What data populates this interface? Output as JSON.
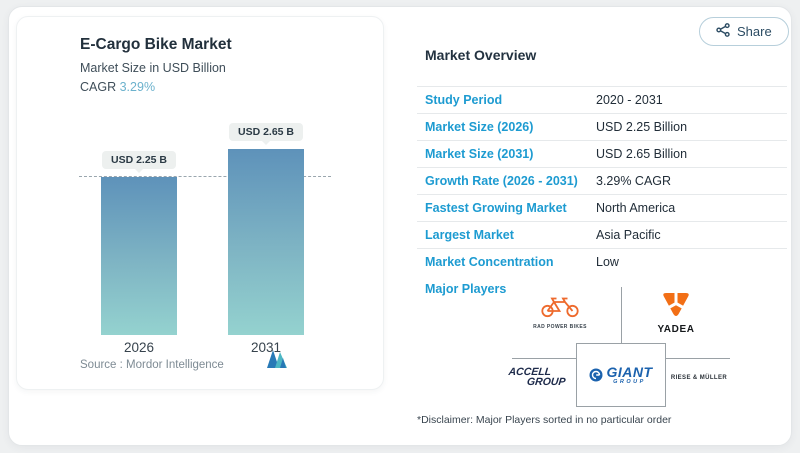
{
  "share": {
    "label": "Share"
  },
  "chart_panel": {
    "title": "E-Cargo Bike Market",
    "subtitle": "Market Size in USD Billion",
    "cagr_label": "CAGR",
    "cagr_value": "3.29%",
    "source_label": "Source :",
    "source_name": "Mordor Intelligence"
  },
  "chart_data": {
    "type": "bar",
    "categories": [
      "2026",
      "2031"
    ],
    "values": [
      2.25,
      2.65
    ],
    "bar_labels": [
      "USD 2.25 B",
      "USD 2.65 B"
    ],
    "title": "E-Cargo Bike Market",
    "ylabel": "Market Size in USD Billion",
    "unit": "USD Billion",
    "ylim": [
      0,
      2.65
    ],
    "grid": false,
    "legend": false,
    "annotations": [
      "horizontal dashed reference line at 2026 value (USD 2.25 B)"
    ]
  },
  "overview": {
    "heading": "Market Overview",
    "rows": [
      {
        "label": "Study Period",
        "value": "2020 - 2031"
      },
      {
        "label": "Market Size (2026)",
        "value": "USD 2.25 Billion"
      },
      {
        "label": "Market Size (2031)",
        "value": "USD 2.65 Billion"
      },
      {
        "label": "Growth Rate (2026 - 2031)",
        "value": "3.29% CAGR"
      },
      {
        "label": "Fastest Growing Market",
        "value": "North America"
      },
      {
        "label": "Largest Market",
        "value": "Asia Pacific"
      },
      {
        "label": "Market Concentration",
        "value": "Low"
      }
    ],
    "major_players_label": "Major Players",
    "major_players": [
      "Rad Power Bikes",
      "Yadea",
      "Accell Group",
      "Giant Group",
      "Riese & Müller"
    ],
    "disclaimer": "*Disclaimer: Major Players sorted in no particular order"
  },
  "logos": {
    "rad_power_bikes": "RAD POWER BIKES",
    "yadea": "YADEA",
    "accell_line1": "ACCELL",
    "accell_line2": "GROUP",
    "giant": "GIANT",
    "giant_sub": "GROUP",
    "riese_muller": "RIESE & MÜLLER"
  },
  "colors": {
    "accent_blue": "#1d9bd1",
    "navy_text": "#22303c",
    "bar_gradient_top": "#5e92ba",
    "bar_gradient_bottom": "#94d2cf",
    "cagr_value_blue": "#6cb2cd",
    "logo_orange": "#ee6a2d",
    "giant_blue": "#1b62ae",
    "mordor_blue": "#2879b6",
    "mordor_teal": "#4db7c4",
    "connector_gray": "#9aa1a6"
  }
}
